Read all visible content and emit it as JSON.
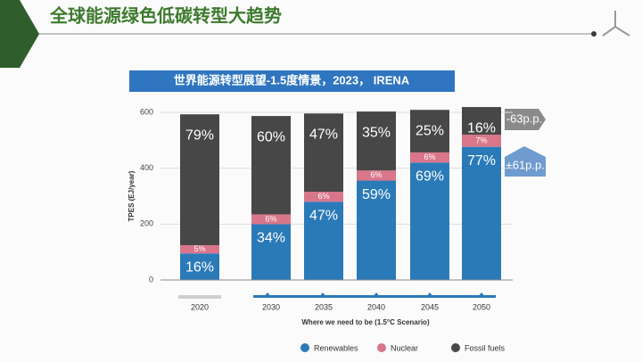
{
  "header": {
    "title": "全球能源绿色低碳转型大趋势"
  },
  "chart_data": {
    "type": "stacked_percent_bar",
    "title": "世界能源转型展望-1.5度情景，2023， IRENA",
    "y_label": "TPES (EJ/year)",
    "x_label": "Where we need to be (1.5°C Scenario)",
    "categories": [
      "2020",
      "2030",
      "2035",
      "2040",
      "2045",
      "2050"
    ],
    "totals": [
      593,
      587,
      596,
      603,
      609,
      619
    ],
    "series": [
      {
        "name": "Renewables",
        "color": "#2a7ab8",
        "values": [
          16,
          34,
          47,
          59,
          69,
          77
        ],
        "value_labels": [
          "16%",
          "34%",
          "47%",
          "59%",
          "69%",
          "77%"
        ]
      },
      {
        "name": "Nuclear",
        "color": "#d9768a",
        "values": [
          5,
          6,
          6,
          6,
          6,
          7
        ],
        "value_labels": [
          "5%",
          "6%",
          "6%",
          "6%",
          "6%",
          "7%"
        ]
      },
      {
        "name": "Fossil fuels",
        "color": "#474747",
        "values": [
          79,
          60,
          47,
          35,
          25,
          16
        ],
        "value_labels": [
          "79%",
          "60%",
          "47%",
          "35%",
          "25%",
          "16%"
        ]
      }
    ],
    "ylim": [
      0,
      640
    ],
    "yticks": [
      0,
      200,
      400,
      600
    ],
    "grid": true,
    "annotations": [
      "-63p.p.",
      "+61p.p."
    ]
  }
}
